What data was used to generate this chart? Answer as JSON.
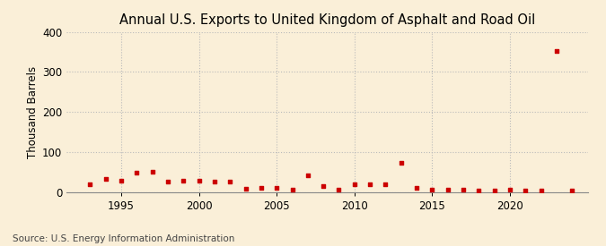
{
  "title": "Annual U.S. Exports to United Kingdom of Asphalt and Road Oil",
  "ylabel": "Thousand Barrels",
  "source": "Source: U.S. Energy Information Administration",
  "background_color": "#faefd8",
  "marker_color": "#cc0000",
  "grid_color": "#bbbbbb",
  "years": [
    1993,
    1994,
    1995,
    1996,
    1997,
    1998,
    1999,
    2000,
    2001,
    2002,
    2003,
    2004,
    2005,
    2006,
    2007,
    2008,
    2009,
    2010,
    2011,
    2012,
    2013,
    2014,
    2015,
    2016,
    2017,
    2018,
    2019,
    2020,
    2021,
    2022,
    2023,
    2024
  ],
  "values": [
    18,
    32,
    27,
    48,
    50,
    26,
    29,
    27,
    26,
    25,
    7,
    9,
    9,
    5,
    42,
    14,
    5,
    20,
    18,
    18,
    73,
    9,
    6,
    5,
    5,
    4,
    4,
    5,
    4,
    4,
    352,
    4
  ],
  "ylim": [
    0,
    400
  ],
  "yticks": [
    0,
    100,
    200,
    300,
    400
  ],
  "xlim": [
    1991.5,
    2025
  ],
  "xticks": [
    1995,
    2000,
    2005,
    2010,
    2015,
    2020
  ],
  "title_fontsize": 10.5,
  "axis_fontsize": 8.5,
  "source_fontsize": 7.5
}
